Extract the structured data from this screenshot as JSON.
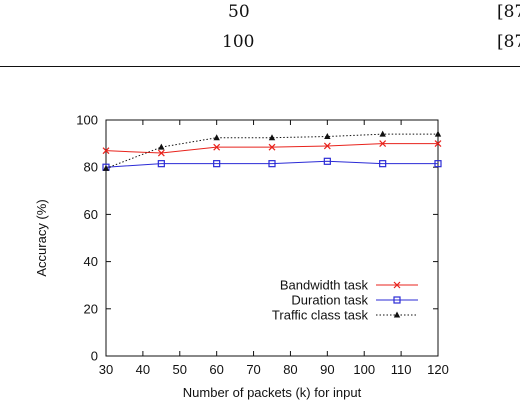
{
  "table_fragment": {
    "rows": [
      {
        "k": "50",
        "value": "[87"
      },
      {
        "k": "100",
        "value": "[87"
      }
    ]
  },
  "chart_data": {
    "type": "line",
    "title": "",
    "xlabel": "Number of packets (k) for input",
    "ylabel": "Accuracy (%)",
    "xlim": [
      30,
      120
    ],
    "ylim": [
      0,
      100
    ],
    "xticks": [
      30,
      40,
      50,
      60,
      70,
      80,
      90,
      100,
      110,
      120
    ],
    "yticks": [
      0,
      20,
      40,
      60,
      80,
      100
    ],
    "grid": false,
    "legend_position": "bottom-right",
    "x": [
      30,
      45,
      60,
      75,
      90,
      105,
      120
    ],
    "series": [
      {
        "name": "Bandwidth task",
        "color": "#e8231c",
        "marker": "x",
        "dash": "solid",
        "values": [
          87,
          86,
          88.5,
          88.5,
          89,
          90,
          90
        ]
      },
      {
        "name": "Duration task",
        "color": "#2b2bd6",
        "marker": "square",
        "dash": "solid",
        "values": [
          80,
          81.5,
          81.5,
          81.5,
          82.5,
          81.5,
          81.5
        ]
      },
      {
        "name": "Traffic class task",
        "color": "#111111",
        "marker": "triangle",
        "dash": "dotted",
        "values": [
          79.5,
          88.5,
          92.5,
          92.5,
          93,
          94,
          94
        ]
      }
    ]
  }
}
